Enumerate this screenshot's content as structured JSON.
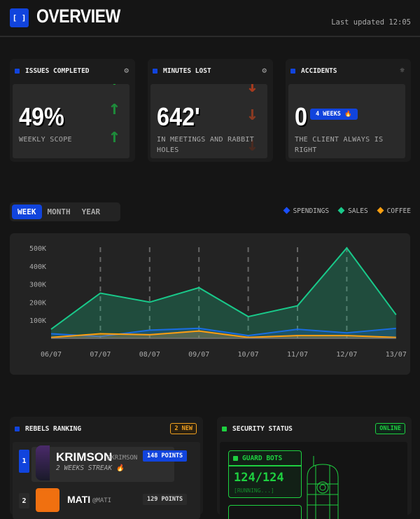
{
  "header": {
    "logo": "[ ]",
    "title": "OVERVIEW",
    "last_updated": "Last updated 12:05"
  },
  "cards": [
    {
      "title": "ISSUES COMPLETED",
      "icon": "gear-icon",
      "value": "49%",
      "subtitle": "WEEKLY SCOPE",
      "trend": "up",
      "trend_color": "#1e8a3a"
    },
    {
      "title": "MINUTES LOST",
      "icon": "settings-icon",
      "value": "642'",
      "subtitle": "IN MEETINGS AND RABBIT HOLES",
      "trend": "down",
      "trend_color": "#a53a1e"
    },
    {
      "title": "ACCIDENTS",
      "icon": "sun-icon",
      "value": "0",
      "badge": "4 WEEKS 🔥",
      "subtitle": "THE CLIENT ALWAYS IS RIGHT"
    }
  ],
  "tabs": [
    {
      "label": "WEEK",
      "active": true
    },
    {
      "label": "MONTH"
    },
    {
      "label": "YEAR"
    }
  ],
  "chart_data": {
    "type": "area",
    "x": [
      "06/07",
      "07/07",
      "08/07",
      "09/07",
      "10/07",
      "11/07",
      "12/07",
      "13/07"
    ],
    "yticks": [
      "100K",
      "200K",
      "300K",
      "400K",
      "500K"
    ],
    "ylim": [
      0,
      500000
    ],
    "legend_position": "top-right",
    "grid": "vertical dashed",
    "series": [
      {
        "name": "SPENDINGS",
        "color": "#1a4fff",
        "values": [
          25000,
          10000,
          45000,
          55000,
          15000,
          50000,
          30000,
          55000
        ]
      },
      {
        "name": "SALES",
        "color": "#19c98a",
        "values": [
          50000,
          250000,
          200000,
          280000,
          120000,
          180000,
          500000,
          130000
        ]
      },
      {
        "name": "COFFEE",
        "color": "#ff9f0f",
        "values": [
          5000,
          25000,
          20000,
          40000,
          5000,
          15000,
          15000,
          5000
        ]
      }
    ]
  },
  "ranking": {
    "title": "REBELS RANKING",
    "badge": "2 NEW",
    "items": [
      {
        "rank": "1",
        "name": "KRIMSON",
        "handle": "@KRIMSON",
        "points": "148 POINTS",
        "streak": "2 WEEKS STREAK 🔥"
      },
      {
        "rank": "2",
        "name": "MATI",
        "handle": "@MATI",
        "points": "129 POINTS"
      }
    ]
  },
  "security": {
    "title": "SECURITY STATUS",
    "status": "ONLINE",
    "bots_label": "GUARD BOTS",
    "bots_value": "124/124",
    "bots_state": "[RUNNING...]"
  }
}
